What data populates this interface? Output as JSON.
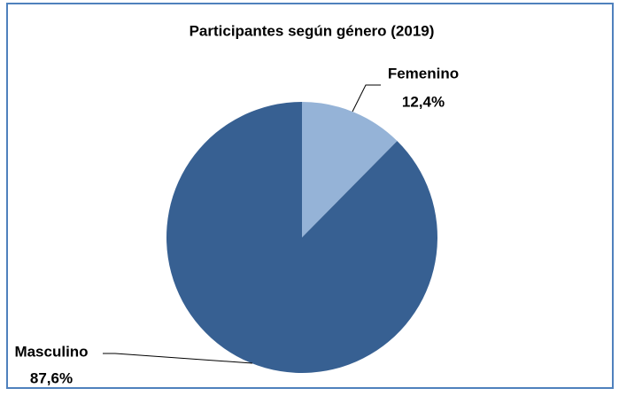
{
  "chart_data": {
    "type": "pie",
    "title": "Participantes según género (2019)",
    "categories": [
      "Femenino",
      "Masculino"
    ],
    "values": [
      12.4,
      87.6
    ],
    "value_labels": [
      "12,4%",
      "87,6%"
    ],
    "colors": [
      "#95b3d7",
      "#376092"
    ]
  }
}
